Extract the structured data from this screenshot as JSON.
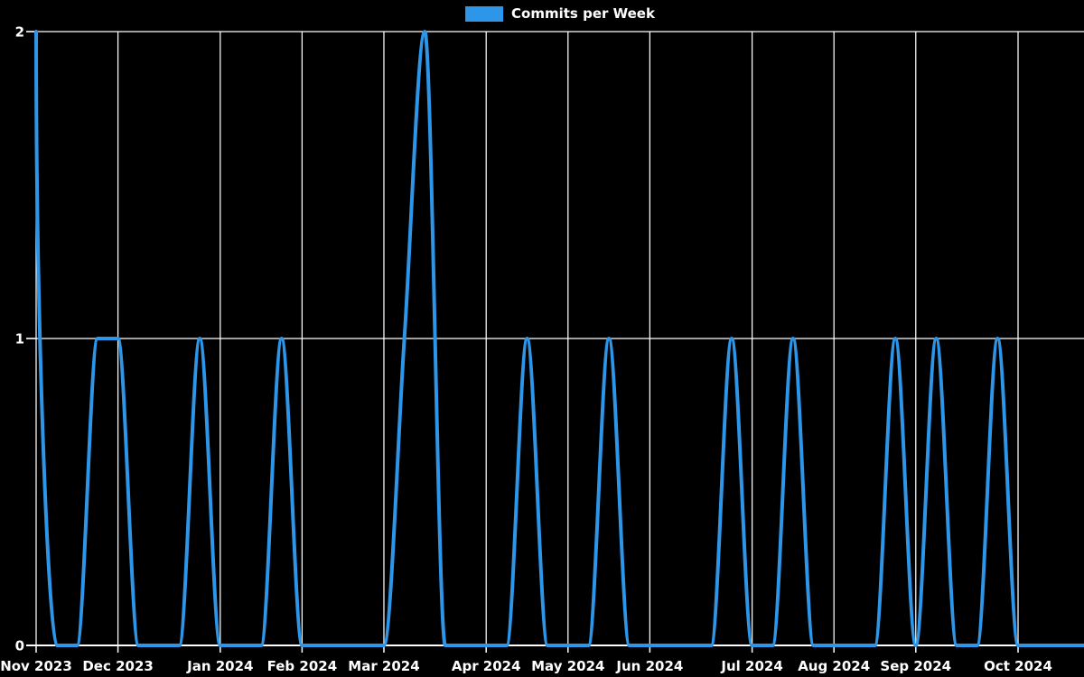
{
  "chart_data": {
    "type": "line",
    "title": "Commits per Week",
    "legend": {
      "label": "Commits per Week",
      "position": "top-center"
    },
    "series": [
      {
        "name": "Commits per Week",
        "values": [
          2,
          0,
          0,
          1,
          1,
          0,
          0,
          0,
          1,
          0,
          0,
          0,
          1,
          0,
          0,
          0,
          0,
          0,
          1,
          2,
          0,
          0,
          0,
          0,
          1,
          0,
          0,
          0,
          1,
          0,
          0,
          0,
          0,
          0,
          1,
          0,
          0,
          1,
          0,
          0,
          0,
          0,
          1,
          0,
          1,
          0,
          0,
          1,
          0,
          0,
          0,
          0
        ]
      }
    ],
    "x_unit": "week",
    "month_ticks": [
      {
        "label": "Nov 2023",
        "week": 0
      },
      {
        "label": "Dec 2023",
        "week": 4
      },
      {
        "label": "Jan 2024",
        "week": 9
      },
      {
        "label": "Feb 2024",
        "week": 13
      },
      {
        "label": "Mar 2024",
        "week": 17
      },
      {
        "label": "Apr 2024",
        "week": 22
      },
      {
        "label": "May 2024",
        "week": 26
      },
      {
        "label": "Jun 2024",
        "week": 30
      },
      {
        "label": "Jul 2024",
        "week": 35
      },
      {
        "label": "Aug 2024",
        "week": 39
      },
      {
        "label": "Sep 2024",
        "week": 43
      },
      {
        "label": "Oct 2024",
        "week": 48
      }
    ],
    "yticks": [
      0,
      1,
      2
    ],
    "ylim": [
      0,
      2
    ],
    "xlabel": "",
    "ylabel": "",
    "grid": true,
    "colors": {
      "background": "#000000",
      "grid": "#ffffff",
      "axis": "#ffffff",
      "text": "#ffffff",
      "line": "#2d96e8"
    }
  }
}
